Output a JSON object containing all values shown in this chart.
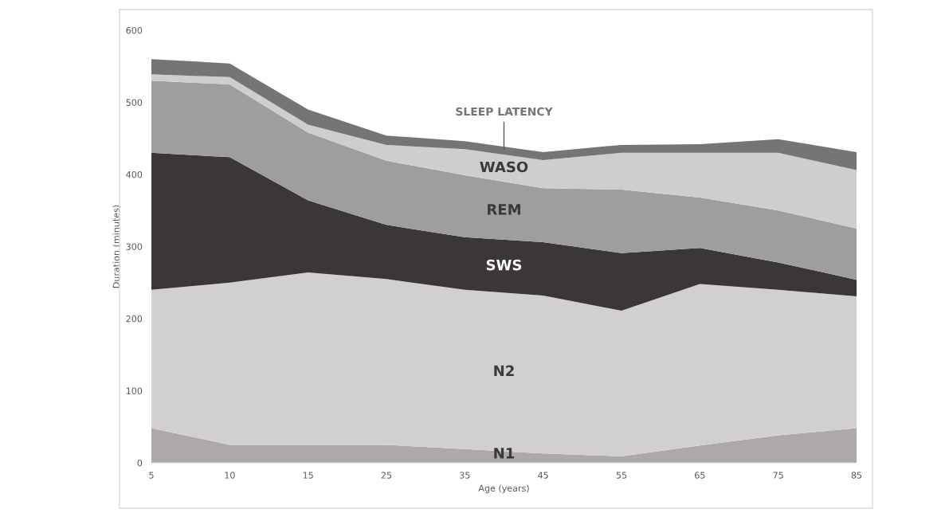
{
  "chart_data": {
    "type": "area",
    "stacked": true,
    "xlabel": "Age (years)",
    "ylabel": "Duration (minutes)",
    "categories": [
      "5",
      "10",
      "15",
      "25",
      "35",
      "45",
      "55",
      "65",
      "75",
      "85"
    ],
    "series": [
      {
        "name": "N1",
        "color": "#ada9aa",
        "values": [
          48,
          25,
          25,
          25,
          19,
          13,
          9,
          24,
          38,
          48
        ]
      },
      {
        "name": "N2",
        "color": "#d2cfd0",
        "values": [
          192,
          225,
          239,
          230,
          221,
          219,
          202,
          224,
          202,
          183
        ]
      },
      {
        "name": "SWS",
        "color": "#3b3637",
        "values": [
          190,
          174,
          100,
          75,
          73,
          74,
          80,
          50,
          38,
          23
        ]
      },
      {
        "name": "REM",
        "color": "#9f9e9e",
        "values": [
          100,
          101,
          94,
          89,
          86,
          75,
          88,
          70,
          72,
          71
        ]
      },
      {
        "name": "WASO",
        "color": "#d0cdce",
        "values": [
          9,
          10,
          11,
          22,
          36,
          39,
          51,
          62,
          80,
          81
        ]
      },
      {
        "name": "SLEEP LATENCY",
        "color": "#767474",
        "values": [
          21,
          19,
          21,
          13,
          11,
          11,
          11,
          12,
          19,
          25
        ]
      }
    ],
    "ylim": [
      0,
      600
    ],
    "yticks": [
      0,
      100,
      200,
      300,
      400,
      500,
      600
    ],
    "grid": false,
    "legend": false
  }
}
